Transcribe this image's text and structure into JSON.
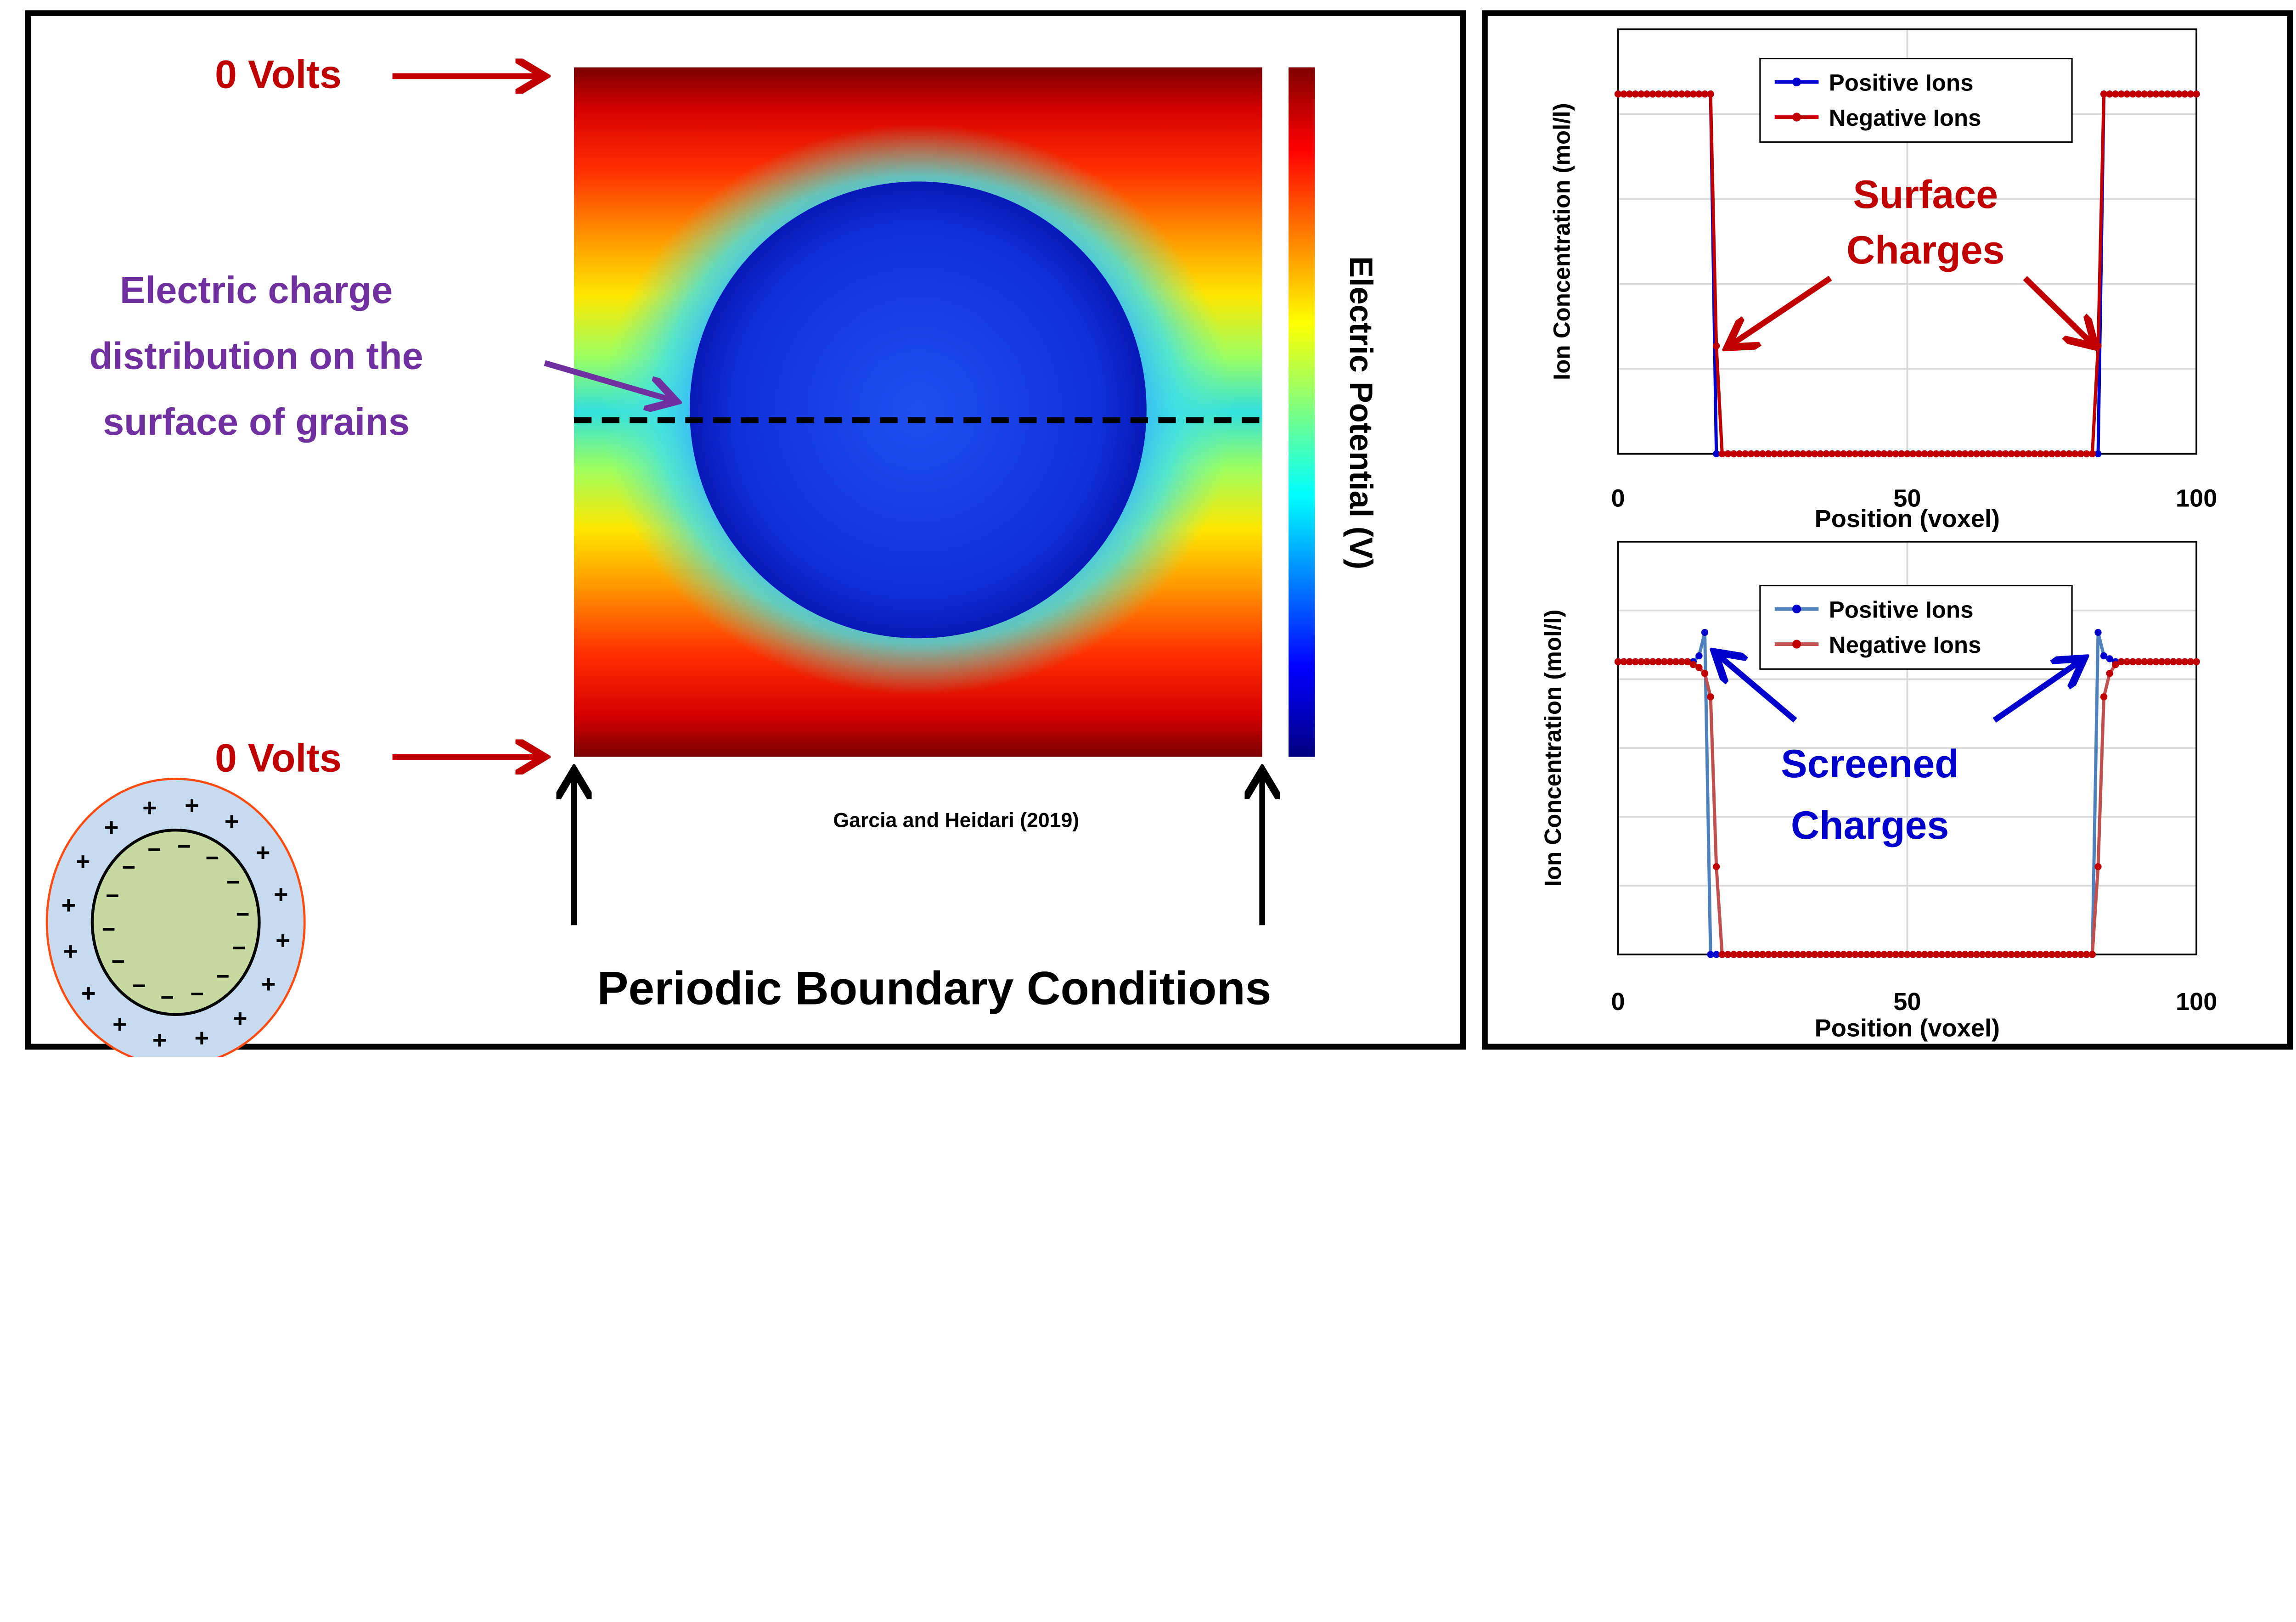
{
  "left_panel": {
    "top_label": "0 Volts",
    "bottom_label": "0 Volts",
    "charge_label_lines": [
      "Electric charge",
      "distribution on the",
      "surface of grains"
    ],
    "colorbar_label": "Electric Potential (V)",
    "citation": "Garcia  and Heidari (2019)",
    "boundary_label": "Periodic Boundary Conditions",
    "inset_symbols": {
      "outer": "+",
      "inner": "−"
    },
    "colors": {
      "red_text": "#c00000",
      "purple_text": "#7030a0",
      "shell": "#c6daf0",
      "shell_edge": "#ff4a10",
      "grain": "#c6d9a0"
    }
  },
  "chart_data": [
    {
      "type": "line",
      "xlabel": "Position (voxel)",
      "ylabel": "Ion Concentration (mol/l)",
      "x_ticks": [
        "0",
        "50",
        "100"
      ],
      "xlim": [
        0,
        100
      ],
      "ylim": [
        0,
        1.18
      ],
      "y_gridlines": 5,
      "grid": true,
      "legend": "top-center",
      "annotation": [
        "Surface",
        "Charges"
      ],
      "annotation_color": "#c00000",
      "series": [
        {
          "name": "Positive Ions",
          "line_color": "#0000cc",
          "marker_color": "#0000cc",
          "values": [
            1,
            1,
            1,
            1,
            1,
            1,
            1,
            1,
            1,
            1,
            1,
            1,
            1,
            1,
            1,
            1,
            1,
            0,
            0,
            0,
            0,
            0,
            0,
            0,
            0,
            0,
            0,
            0,
            0,
            0,
            0,
            0,
            0,
            0,
            0,
            0,
            0,
            0,
            0,
            0,
            0,
            0,
            0,
            0,
            0,
            0,
            0,
            0,
            0,
            0,
            0,
            0,
            0,
            0,
            0,
            0,
            0,
            0,
            0,
            0,
            0,
            0,
            0,
            0,
            0,
            0,
            0,
            0,
            0,
            0,
            0,
            0,
            0,
            0,
            0,
            0,
            0,
            0,
            0,
            0,
            0,
            0,
            0,
            0,
            1,
            1,
            1,
            1,
            1,
            1,
            1,
            1,
            1,
            1,
            1,
            1,
            1,
            1,
            1,
            1,
            1
          ]
        },
        {
          "name": "Negative Ions",
          "line_color": "#c00000",
          "marker_color": "#c00000",
          "values": [
            1,
            1,
            1,
            1,
            1,
            1,
            1,
            1,
            1,
            1,
            1,
            1,
            1,
            1,
            1,
            1,
            1,
            0.3,
            0,
            0,
            0,
            0,
            0,
            0,
            0,
            0,
            0,
            0,
            0,
            0,
            0,
            0,
            0,
            0,
            0,
            0,
            0,
            0,
            0,
            0,
            0,
            0,
            0,
            0,
            0,
            0,
            0,
            0,
            0,
            0,
            0,
            0,
            0,
            0,
            0,
            0,
            0,
            0,
            0,
            0,
            0,
            0,
            0,
            0,
            0,
            0,
            0,
            0,
            0,
            0,
            0,
            0,
            0,
            0,
            0,
            0,
            0,
            0,
            0,
            0,
            0,
            0,
            0,
            0.3,
            1,
            1,
            1,
            1,
            1,
            1,
            1,
            1,
            1,
            1,
            1,
            1,
            1,
            1,
            1,
            1,
            1
          ]
        }
      ]
    },
    {
      "type": "line",
      "xlabel": "Position (voxel)",
      "ylabel": "Ion Concentration (mol/l)",
      "x_ticks": [
        "0",
        "50",
        "100"
      ],
      "xlim": [
        0,
        100
      ],
      "ylim": [
        0,
        1.41
      ],
      "y_gridlines": 6,
      "grid": true,
      "legend": "top-center",
      "annotation": [
        "Screened",
        "Charges"
      ],
      "annotation_color": "#0000cc",
      "series": [
        {
          "name": "Positive Ions",
          "line_color": "#4f81bd",
          "marker_color": "#0000cc",
          "values": [
            1,
            1,
            1,
            1,
            1,
            1,
            1,
            1,
            1,
            1,
            1,
            1,
            1,
            1,
            1.02,
            1.1,
            0,
            0,
            0,
            0,
            0,
            0,
            0,
            0,
            0,
            0,
            0,
            0,
            0,
            0,
            0,
            0,
            0,
            0,
            0,
            0,
            0,
            0,
            0,
            0,
            0,
            0,
            0,
            0,
            0,
            0,
            0,
            0,
            0,
            0,
            0,
            0,
            0,
            0,
            0,
            0,
            0,
            0,
            0,
            0,
            0,
            0,
            0,
            0,
            0,
            0,
            0,
            0,
            0,
            0,
            0,
            0,
            0,
            0,
            0,
            0,
            0,
            0,
            0,
            0,
            0,
            0,
            0,
            1.1,
            1.02,
            1.01,
            1,
            1,
            1,
            1,
            1,
            1,
            1,
            1,
            1,
            1,
            1,
            1,
            1,
            1,
            1
          ]
        },
        {
          "name": "Negative Ions",
          "line_color": "#c0504d",
          "marker_color": "#c00000",
          "values": [
            1,
            1,
            1,
            1,
            1,
            1,
            1,
            1,
            1,
            1,
            1,
            1,
            1,
            0.99,
            0.98,
            0.96,
            0.88,
            0.3,
            0,
            0,
            0,
            0,
            0,
            0,
            0,
            0,
            0,
            0,
            0,
            0,
            0,
            0,
            0,
            0,
            0,
            0,
            0,
            0,
            0,
            0,
            0,
            0,
            0,
            0,
            0,
            0,
            0,
            0,
            0,
            0,
            0,
            0,
            0,
            0,
            0,
            0,
            0,
            0,
            0,
            0,
            0,
            0,
            0,
            0,
            0,
            0,
            0,
            0,
            0,
            0,
            0,
            0,
            0,
            0,
            0,
            0,
            0,
            0,
            0,
            0,
            0,
            0,
            0,
            0.3,
            0.88,
            0.96,
            0.99,
            1,
            1,
            1,
            1,
            1,
            1,
            1,
            1,
            1,
            1,
            1,
            1,
            1,
            1
          ]
        }
      ]
    }
  ]
}
